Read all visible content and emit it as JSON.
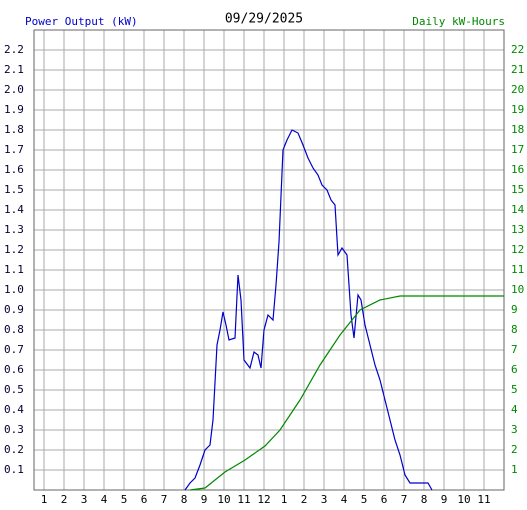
{
  "chart_data": {
    "type": "line",
    "title": "09/29/2025",
    "y_label": "Power Output (kW)",
    "y2_label": "Daily kW-Hours",
    "xlim": [
      0.5,
      24
    ],
    "ylim": [
      0,
      2.3
    ],
    "y2lim": [
      0,
      23
    ],
    "grid": true,
    "xticks": [
      1,
      2,
      3,
      4,
      5,
      6,
      7,
      8,
      9,
      10,
      11,
      12,
      {
        "value": 13,
        "label": "1"
      },
      {
        "value": 14,
        "label": "2"
      },
      {
        "value": 15,
        "label": "3"
      },
      {
        "value": 16,
        "label": "4"
      },
      {
        "value": 17,
        "label": "5"
      },
      {
        "value": 18,
        "label": "6"
      },
      {
        "value": 19,
        "label": "7"
      },
      {
        "value": 20,
        "label": "8"
      },
      {
        "value": 21,
        "label": "9"
      },
      {
        "value": 22,
        "label": "10"
      },
      {
        "value": 23,
        "label": "11"
      }
    ],
    "yticks": [
      0.1,
      0.2,
      0.3,
      0.4,
      0.5,
      0.6,
      0.7,
      0.8,
      0.9,
      {
        "value": 1,
        "label": "1.0"
      },
      1.1,
      1.2,
      1.3,
      1.4,
      1.5,
      1.6,
      1.7,
      1.8,
      1.9,
      {
        "value": 2,
        "label": "2.0"
      },
      2.1,
      2.2
    ],
    "y2ticks": [
      1,
      2,
      3,
      4,
      5,
      6,
      7,
      8,
      9,
      10,
      11,
      12,
      13,
      14,
      15,
      16,
      17,
      18,
      19,
      20,
      21,
      22
    ],
    "series": [
      {
        "name": "Power Output (kW)",
        "color": "#0000cc",
        "x": [
          8.05,
          8.3,
          8.55,
          8.8,
          9.05,
          9.3,
          9.45,
          9.65,
          9.8,
          9.95,
          10.1,
          10.25,
          10.55,
          10.7,
          10.85,
          11,
          11.3,
          11.5,
          11.7,
          11.85,
          12,
          12.2,
          12.45,
          12.6,
          12.75,
          12.95,
          13.15,
          13.4,
          13.7,
          13.95,
          14.2,
          14.45,
          14.7,
          14.9,
          15.15,
          15.35,
          15.55,
          15.7,
          15.9,
          16.15,
          16.35,
          16.5,
          16.7,
          16.85,
          17.05,
          17.3,
          17.55,
          17.8,
          18.05,
          18.3,
          18.55,
          18.8,
          19.05,
          19.3,
          20.2,
          20.4
        ],
        "values": [
          0,
          0.035,
          0.06,
          0.125,
          0.2,
          0.225,
          0.35,
          0.725,
          0.8,
          0.89,
          0.825,
          0.75,
          0.76,
          1.075,
          0.95,
          0.65,
          0.61,
          0.69,
          0.675,
          0.61,
          0.8,
          0.875,
          0.85,
          1.025,
          1.24,
          1.7,
          1.75,
          1.8,
          1.785,
          1.725,
          1.66,
          1.61,
          1.575,
          1.525,
          1.5,
          1.45,
          1.425,
          1.175,
          1.21,
          1.175,
          0.875,
          0.76,
          0.975,
          0.95,
          0.825,
          0.725,
          0.625,
          0.55,
          0.45,
          0.35,
          0.25,
          0.175,
          0.075,
          0.035,
          0.035,
          0
        ]
      },
      {
        "name": "Daily kW-Hours",
        "color": "#008800",
        "axis": "y2",
        "x": [
          8.3,
          9.05,
          9.55,
          10.05,
          11.05,
          12.05,
          12.8,
          13.8,
          14.8,
          15.8,
          16.8,
          17.8,
          18.8,
          19.8,
          24
        ],
        "values": [
          0,
          0.1,
          0.5,
          0.9,
          1.5,
          2.2,
          3,
          4.5,
          6.25,
          7.75,
          9,
          9.5,
          9.7,
          9.7,
          9.7
        ]
      }
    ]
  }
}
